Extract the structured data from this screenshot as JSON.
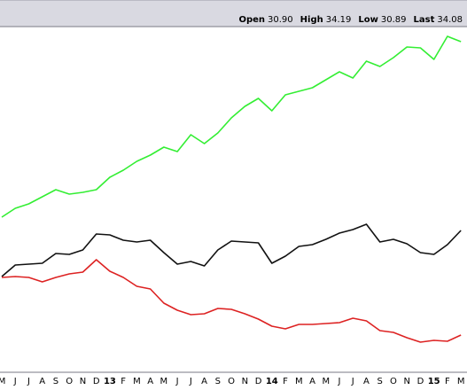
{
  "chart_data": {
    "type": "line",
    "header": [
      {
        "label": "Open",
        "value": "30.90"
      },
      {
        "label": "High",
        "value": "34.19"
      },
      {
        "label": "Low",
        "value": "30.89"
      },
      {
        "label": "Last",
        "value": "34.08"
      }
    ],
    "categories": [
      "M",
      "J",
      "J",
      "A",
      "S",
      "O",
      "N",
      "D",
      "13",
      "F",
      "M",
      "A",
      "M",
      "J",
      "J",
      "A",
      "S",
      "O",
      "N",
      "D",
      "14",
      "F",
      "M",
      "A",
      "M",
      "J",
      "J",
      "A",
      "S",
      "O",
      "N",
      "D",
      "15",
      "F",
      "M"
    ],
    "ylim": [
      0,
      390
    ],
    "series": [
      {
        "color": "#33ee33",
        "values": [
          175,
          185,
          190,
          198,
          206,
          201,
          203,
          206,
          220,
          228,
          238,
          245,
          254,
          249,
          268,
          258,
          270,
          287,
          300,
          309,
          295,
          313,
          317,
          321,
          330,
          339,
          332,
          351,
          345,
          355,
          367,
          366,
          353,
          379,
          373
        ]
      },
      {
        "color": "#111111",
        "values": [
          108,
          121,
          122,
          123,
          134,
          133,
          138,
          156,
          155,
          149,
          147,
          149,
          135,
          122,
          125,
          120,
          138,
          148,
          147,
          146,
          123,
          131,
          142,
          144,
          150,
          157,
          161,
          167,
          147,
          150,
          145,
          135,
          133,
          144,
          160
        ]
      },
      {
        "color": "#dd2222",
        "values": [
          107,
          108,
          107,
          102,
          107,
          111,
          113,
          127,
          114,
          107,
          97,
          94,
          78,
          70,
          65,
          66,
          72,
          71,
          66,
          60,
          52,
          49,
          54,
          54,
          55,
          56,
          61,
          58,
          47,
          45,
          39,
          34,
          36,
          35,
          42
        ]
      }
    ]
  }
}
